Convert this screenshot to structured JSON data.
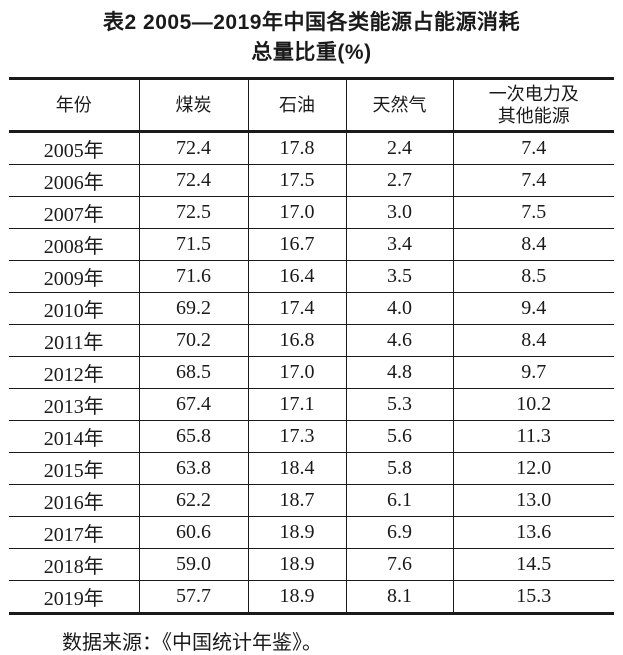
{
  "title": {
    "line1": "表2 2005—2019年中国各类能源占能源消耗",
    "line2": "总量比重(%)"
  },
  "table": {
    "headers": [
      "年份",
      "煤炭",
      "石油",
      "天然气",
      "一次电力及\n其他能源"
    ],
    "column_keys": [
      "year",
      "coal",
      "oil",
      "gas",
      "electricity"
    ],
    "rows": [
      {
        "year": "2005年",
        "coal": "72.4",
        "oil": "17.8",
        "gas": "2.4",
        "electricity": "7.4"
      },
      {
        "year": "2006年",
        "coal": "72.4",
        "oil": "17.5",
        "gas": "2.7",
        "electricity": "7.4"
      },
      {
        "year": "2007年",
        "coal": "72.5",
        "oil": "17.0",
        "gas": "3.0",
        "electricity": "7.5"
      },
      {
        "year": "2008年",
        "coal": "71.5",
        "oil": "16.7",
        "gas": "3.4",
        "electricity": "8.4"
      },
      {
        "year": "2009年",
        "coal": "71.6",
        "oil": "16.4",
        "gas": "3.5",
        "electricity": "8.5"
      },
      {
        "year": "2010年",
        "coal": "69.2",
        "oil": "17.4",
        "gas": "4.0",
        "electricity": "9.4"
      },
      {
        "year": "2011年",
        "coal": "70.2",
        "oil": "16.8",
        "gas": "4.6",
        "electricity": "8.4"
      },
      {
        "year": "2012年",
        "coal": "68.5",
        "oil": "17.0",
        "gas": "4.8",
        "electricity": "9.7"
      },
      {
        "year": "2013年",
        "coal": "67.4",
        "oil": "17.1",
        "gas": "5.3",
        "electricity": "10.2"
      },
      {
        "year": "2014年",
        "coal": "65.8",
        "oil": "17.3",
        "gas": "5.6",
        "electricity": "11.3"
      },
      {
        "year": "2015年",
        "coal": "63.8",
        "oil": "18.4",
        "gas": "5.8",
        "electricity": "12.0"
      },
      {
        "year": "2016年",
        "coal": "62.2",
        "oil": "18.7",
        "gas": "6.1",
        "electricity": "13.0"
      },
      {
        "year": "2017年",
        "coal": "60.6",
        "oil": "18.9",
        "gas": "6.9",
        "electricity": "13.6"
      },
      {
        "year": "2018年",
        "coal": "59.0",
        "oil": "18.9",
        "gas": "7.6",
        "electricity": "14.5"
      },
      {
        "year": "2019年",
        "coal": "57.7",
        "oil": "18.9",
        "gas": "8.1",
        "electricity": "15.3"
      }
    ]
  },
  "footer": {
    "source": "数据来源：《中国统计年鉴》。"
  },
  "colors": {
    "text": "#1a1a1a",
    "border": "#1a1a1a",
    "background": "#ffffff"
  }
}
